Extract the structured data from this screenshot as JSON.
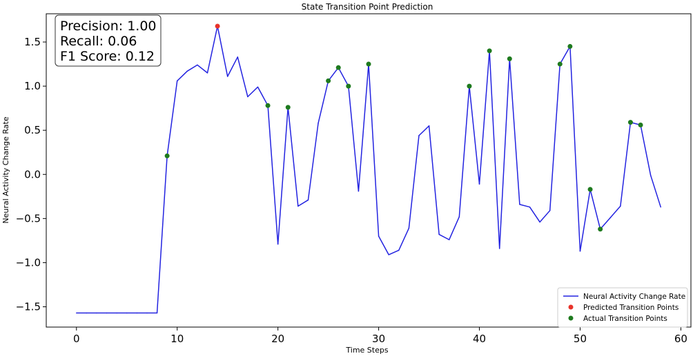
{
  "chart_data": {
    "type": "line",
    "title": "State Transition Point Prediction",
    "xlabel": "Time Steps",
    "ylabel": "Neural Activity Change Rate",
    "xlim": [
      -3,
      61
    ],
    "ylim": [
      -1.73,
      1.82
    ],
    "xticks": [
      0,
      10,
      20,
      30,
      40,
      50,
      60
    ],
    "yticks": [
      -1.5,
      -1.0,
      -0.5,
      0.0,
      0.5,
      1.0,
      1.5
    ],
    "ytick_labels": [
      "−1.5",
      "−1.0",
      "−0.5",
      "0.0",
      "0.5",
      "1.0",
      "1.5"
    ],
    "grid": false,
    "legend_position": "lower-right",
    "series": [
      {
        "name": "Neural Activity Change Rate",
        "kind": "line",
        "color": "#2222e0",
        "x": [
          0,
          1,
          2,
          3,
          4,
          5,
          6,
          7,
          8,
          9,
          10,
          11,
          12,
          13,
          14,
          15,
          16,
          17,
          18,
          19,
          20,
          21,
          22,
          23,
          24,
          25,
          26,
          27,
          28,
          29,
          30,
          31,
          32,
          33,
          34,
          35,
          36,
          37,
          38,
          39,
          40,
          41,
          42,
          43,
          44,
          45,
          46,
          47,
          48,
          49,
          50,
          51,
          52,
          53,
          54,
          55,
          56,
          57,
          58
        ],
        "y": [
          -1.57,
          -1.57,
          -1.57,
          -1.57,
          -1.57,
          -1.57,
          -1.57,
          -1.57,
          -1.57,
          0.21,
          1.06,
          1.17,
          1.24,
          1.15,
          1.68,
          1.11,
          1.33,
          0.88,
          0.99,
          0.78,
          -0.79,
          0.76,
          -0.36,
          -0.29,
          0.58,
          1.06,
          1.21,
          1.0,
          -0.19,
          1.25,
          -0.7,
          -0.91,
          -0.86,
          -0.61,
          0.44,
          0.55,
          -0.68,
          -0.74,
          -0.48,
          1.0,
          -0.11,
          1.4,
          -0.84,
          1.31,
          -0.34,
          -0.37,
          -0.54,
          -0.41,
          1.25,
          1.45,
          -0.87,
          -0.17,
          -0.62,
          -0.49,
          -0.36,
          0.59,
          0.56,
          -0.01,
          -0.37
        ]
      },
      {
        "name": "Predicted Transition Points",
        "kind": "scatter",
        "color": "#e8332a",
        "x": [
          14
        ],
        "y": [
          1.68
        ]
      },
      {
        "name": "Actual Transition Points",
        "kind": "scatter",
        "color": "#1e7a1e",
        "x": [
          9,
          19,
          21,
          25,
          26,
          27,
          29,
          39,
          41,
          43,
          48,
          49,
          51,
          52,
          55,
          56
        ],
        "y": [
          0.21,
          0.78,
          0.76,
          1.06,
          1.21,
          1.0,
          1.25,
          1.0,
          1.4,
          1.31,
          1.25,
          1.45,
          -0.17,
          -0.62,
          0.59,
          0.56
        ]
      }
    ],
    "metrics": [
      "Precision: 1.00",
      "Recall: 0.06",
      "F1 Score: 0.12"
    ]
  }
}
